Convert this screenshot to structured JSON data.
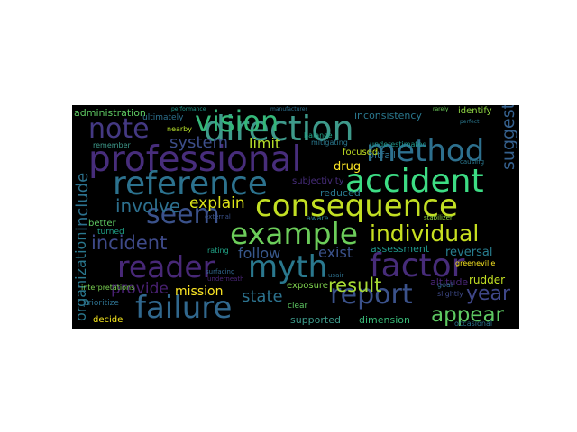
{
  "word_cloud": {
    "background": "#000000",
    "words": [
      {
        "text": "direction",
        "color": "#3e9a8b"
      },
      {
        "text": "professional",
        "color": "#472d7b"
      },
      {
        "text": "vision",
        "color": "#35b779"
      },
      {
        "text": "note",
        "color": "#443983"
      },
      {
        "text": "method",
        "color": "#2d708e"
      },
      {
        "text": "accident",
        "color": "#3ddc84"
      },
      {
        "text": "reference",
        "color": "#2c728e"
      },
      {
        "text": "consequence",
        "color": "#c2df23"
      },
      {
        "text": "seem",
        "color": "#3b528b"
      },
      {
        "text": "example",
        "color": "#6ccd5a"
      },
      {
        "text": "individual",
        "color": "#c8e020"
      },
      {
        "text": "incident",
        "color": "#3e4a89"
      },
      {
        "text": "reader",
        "color": "#482878"
      },
      {
        "text": "myth",
        "color": "#2a788e"
      },
      {
        "text": "factor",
        "color": "#472c7a"
      },
      {
        "text": "failure",
        "color": "#31688e"
      },
      {
        "text": "report",
        "color": "#3b528b"
      },
      {
        "text": "result",
        "color": "#a8db34"
      },
      {
        "text": "appear",
        "color": "#5ec962"
      },
      {
        "text": "year",
        "color": "#3f4788"
      },
      {
        "text": "system",
        "color": "#3d4e8a"
      },
      {
        "text": "limit",
        "color": "#b5de2b"
      },
      {
        "text": "involve",
        "color": "#2d708e"
      },
      {
        "text": "explain",
        "color": "#dde318"
      },
      {
        "text": "follow",
        "color": "#38588c"
      },
      {
        "text": "provide",
        "color": "#482071"
      },
      {
        "text": "mission",
        "color": "#fde725"
      },
      {
        "text": "state",
        "color": "#2c728e"
      },
      {
        "text": "exist",
        "color": "#3b528b"
      },
      {
        "text": "organization",
        "color": "#2a788e"
      },
      {
        "text": "include",
        "color": "#2c728e"
      },
      {
        "text": "suggest",
        "color": "#35608d"
      },
      {
        "text": "drug",
        "color": "#fde725"
      },
      {
        "text": "administration",
        "color": "#5ec962"
      },
      {
        "text": "inconsistency",
        "color": "#2a788e"
      },
      {
        "text": "identify",
        "color": "#90d743"
      },
      {
        "text": "pitfall",
        "color": "#2d708e"
      },
      {
        "text": "reduced",
        "color": "#2a788e"
      },
      {
        "text": "subjectivity",
        "color": "#472d7b"
      },
      {
        "text": "rating",
        "color": "#20a386"
      },
      {
        "text": "assessment",
        "color": "#1f978b"
      },
      {
        "text": "reversal",
        "color": "#287d8e"
      },
      {
        "text": "altitude",
        "color": "#482576"
      },
      {
        "text": "rudder",
        "color": "#c2df23"
      },
      {
        "text": "supported",
        "color": "#3e9a8b"
      },
      {
        "text": "dimension",
        "color": "#38b977"
      },
      {
        "text": "occasional",
        "color": "#2c728e"
      },
      {
        "text": "interpretations",
        "color": "#7ad151"
      },
      {
        "text": "prioritize",
        "color": "#2d708e"
      },
      {
        "text": "decide",
        "color": "#f5e61e"
      },
      {
        "text": "exposure",
        "color": "#7fd34e"
      },
      {
        "text": "clear",
        "color": "#5ec962"
      },
      {
        "text": "better",
        "color": "#5ec962"
      },
      {
        "text": "turned",
        "color": "#1fa187"
      },
      {
        "text": "focused",
        "color": "#c2df23"
      },
      {
        "text": "mitigating",
        "color": "#2a788e"
      },
      {
        "text": "underestimated",
        "color": "#1f968b"
      },
      {
        "text": "balance",
        "color": "#20a386"
      },
      {
        "text": "remember",
        "color": "#3e9a8b"
      },
      {
        "text": "ultimately",
        "color": "#2d708e"
      },
      {
        "text": "nearby",
        "color": "#b5de2b"
      },
      {
        "text": "greeneville",
        "color": "#f8e621"
      },
      {
        "text": "usair",
        "color": "#2d708e"
      },
      {
        "text": "aware",
        "color": "#2a788e"
      },
      {
        "text": "stabilizer",
        "color": "#8fd744"
      },
      {
        "text": "external",
        "color": "#3b528b"
      },
      {
        "text": "underneath",
        "color": "#482576"
      },
      {
        "text": "surfacing",
        "color": "#31688e"
      },
      {
        "text": "causing",
        "color": "#2a788e"
      },
      {
        "text": "slightly",
        "color": "#3e4a89"
      },
      {
        "text": "goal",
        "color": "#31688e"
      },
      {
        "text": "performance",
        "color": "#1f978b"
      },
      {
        "text": "manufacturer",
        "color": "#2d708e"
      },
      {
        "text": "rarely",
        "color": "#6ccd5a"
      },
      {
        "text": "perfect",
        "color": "#2a788e"
      }
    ]
  }
}
